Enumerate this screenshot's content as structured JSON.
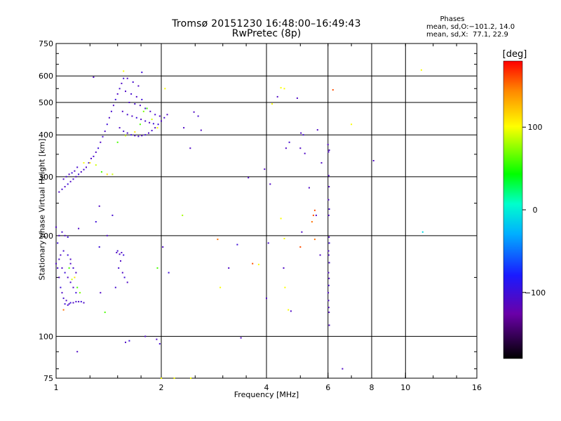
{
  "header": {
    "title_line1": "Tromsø 20151230 16:48:00–16:49:43",
    "title_line2": "RwPretec (8p)"
  },
  "phases": {
    "title": "Phases",
    "o_line": "mean, sd,O:−101.2, 14.0",
    "x_line": "mean, sd,X:  77.1, 22.9"
  },
  "colorbar": {
    "unit": "[deg]",
    "ticks": [
      {
        "value": 100,
        "label": "100"
      },
      {
        "value": 0,
        "label": "0"
      },
      {
        "value": -100,
        "label": "−100"
      }
    ],
    "range": [
      -180,
      180
    ]
  },
  "chart_data": {
    "type": "scatter",
    "title": "Tromsø 20151230 16:48:00–16:49:43",
    "subtitle": "RwPretec (8p)",
    "xlabel": "Frequency [MHz]",
    "ylabel": "Stationary phase Virtual Height [km]",
    "xscale": "log2",
    "yscale": "log",
    "xlim": [
      1,
      16
    ],
    "ylim": [
      75,
      750
    ],
    "xticks": [
      {
        "value": 1,
        "label": "1"
      },
      {
        "value": 2,
        "label": "2"
      },
      {
        "value": 4,
        "label": "4"
      },
      {
        "value": 6,
        "label": "6"
      },
      {
        "value": 8,
        "label": "8"
      },
      {
        "value": 10,
        "label": "10"
      },
      {
        "value": 16,
        "label": "16"
      }
    ],
    "yticks": [
      {
        "value": 75,
        "label": "75"
      },
      {
        "value": 100,
        "label": "100"
      },
      {
        "value": 200,
        "label": "200"
      },
      {
        "value": 300,
        "label": "300"
      },
      {
        "value": 400,
        "label": "400"
      },
      {
        "value": 500,
        "label": "500"
      },
      {
        "value": 600,
        "label": "600"
      },
      {
        "value": 750,
        "label": "750"
      }
    ],
    "grid": true,
    "colorscale": "phase [deg], -180 to 180 (black-purple-blue-cyan-green-yellow-red)",
    "series": [
      {
        "name": "",
        "points": [
          [
            1.0,
            165,
            -110
          ],
          [
            1.01,
            160,
            -105
          ],
          [
            1.02,
            150,
            -110
          ],
          [
            1.03,
            140,
            -100
          ],
          [
            1.04,
            135,
            -110
          ],
          [
            1.05,
            130,
            -105
          ],
          [
            1.06,
            125,
            -100
          ],
          [
            1.07,
            128,
            -110
          ],
          [
            1.08,
            124,
            -105
          ],
          [
            1.09,
            125,
            -110
          ],
          [
            1.1,
            126,
            -100
          ],
          [
            1.12,
            126,
            -110
          ],
          [
            1.14,
            127,
            -105
          ],
          [
            1.16,
            127,
            -110
          ],
          [
            1.18,
            127,
            -100
          ],
          [
            1.2,
            126,
            -110
          ],
          [
            1.02,
            170,
            -105
          ],
          [
            1.04,
            160,
            -110
          ],
          [
            1.06,
            155,
            -100
          ],
          [
            1.08,
            150,
            -110
          ],
          [
            1.1,
            145,
            -105
          ],
          [
            1.12,
            140,
            -110
          ],
          [
            1.14,
            135,
            -100
          ],
          [
            1.1,
            165,
            -110
          ],
          [
            1.12,
            160,
            -105
          ],
          [
            1.14,
            155,
            -110
          ],
          [
            1.08,
            175,
            -100
          ],
          [
            1.1,
            170,
            -110
          ],
          [
            1.05,
            180,
            -105
          ],
          [
            1.03,
            175,
            -110
          ],
          [
            1.01,
            190,
            -100
          ],
          [
            1.02,
            200,
            -110
          ],
          [
            1.04,
            205,
            -105
          ],
          [
            1.06,
            200,
            -110
          ],
          [
            1.08,
            198,
            -100
          ],
          [
            1.0,
            212,
            -110
          ],
          [
            1.09,
            160,
            60
          ],
          [
            1.11,
            148,
            90
          ],
          [
            1.13,
            150,
            110
          ],
          [
            1.15,
            140,
            60
          ],
          [
            1.17,
            135,
            70
          ],
          [
            1.05,
            120,
            150
          ],
          [
            1.02,
            270,
            -110
          ],
          [
            1.04,
            275,
            -105
          ],
          [
            1.06,
            280,
            -110
          ],
          [
            1.08,
            285,
            -100
          ],
          [
            1.1,
            290,
            -110
          ],
          [
            1.12,
            295,
            -105
          ],
          [
            1.14,
            300,
            -110
          ],
          [
            1.16,
            305,
            -100
          ],
          [
            1.18,
            310,
            -110
          ],
          [
            1.2,
            315,
            -105
          ],
          [
            1.22,
            320,
            -110
          ],
          [
            1.24,
            330,
            -100
          ],
          [
            1.26,
            340,
            -110
          ],
          [
            1.28,
            345,
            -105
          ],
          [
            1.3,
            355,
            -110
          ],
          [
            1.32,
            365,
            -100
          ],
          [
            1.34,
            380,
            -110
          ],
          [
            1.36,
            395,
            -105
          ],
          [
            1.38,
            410,
            -110
          ],
          [
            1.4,
            430,
            -100
          ],
          [
            1.42,
            450,
            -110
          ],
          [
            1.44,
            470,
            -105
          ],
          [
            1.46,
            490,
            -110
          ],
          [
            1.48,
            510,
            -100
          ],
          [
            1.5,
            530,
            -110
          ],
          [
            1.52,
            550,
            -105
          ],
          [
            1.54,
            570,
            -110
          ],
          [
            1.56,
            590,
            -100
          ],
          [
            1.05,
            295,
            -110
          ],
          [
            1.07,
            300,
            -105
          ],
          [
            1.09,
            305,
            -110
          ],
          [
            1.11,
            308,
            -100
          ],
          [
            1.13,
            312,
            -110
          ],
          [
            1.15,
            320,
            -105
          ],
          [
            1.2,
            330,
            100
          ],
          [
            1.25,
            330,
            110
          ],
          [
            1.3,
            325,
            90
          ],
          [
            1.35,
            310,
            60
          ],
          [
            1.4,
            305,
            110
          ],
          [
            1.45,
            305,
            90
          ],
          [
            1.52,
            420,
            -110
          ],
          [
            1.56,
            410,
            -105
          ],
          [
            1.6,
            405,
            -110
          ],
          [
            1.64,
            400,
            -100
          ],
          [
            1.68,
            398,
            -110
          ],
          [
            1.72,
            396,
            -105
          ],
          [
            1.76,
            398,
            -110
          ],
          [
            1.8,
            400,
            -100
          ],
          [
            1.84,
            405,
            -110
          ],
          [
            1.88,
            412,
            -105
          ],
          [
            1.92,
            420,
            -110
          ],
          [
            1.96,
            430,
            -100
          ],
          [
            2.0,
            440,
            -110
          ],
          [
            2.04,
            450,
            -105
          ],
          [
            2.08,
            460,
            -110
          ],
          [
            1.55,
            470,
            -110
          ],
          [
            1.6,
            460,
            -105
          ],
          [
            1.65,
            455,
            -110
          ],
          [
            1.7,
            450,
            -100
          ],
          [
            1.75,
            445,
            -110
          ],
          [
            1.8,
            440,
            -105
          ],
          [
            1.85,
            435,
            -110
          ],
          [
            1.9,
            432,
            -100
          ],
          [
            1.62,
            500,
            -110
          ],
          [
            1.68,
            495,
            -105
          ],
          [
            1.74,
            490,
            -110
          ],
          [
            1.8,
            480,
            -100
          ],
          [
            1.86,
            470,
            -110
          ],
          [
            1.92,
            460,
            -105
          ],
          [
            1.98,
            455,
            -110
          ],
          [
            1.58,
            540,
            -110
          ],
          [
            1.64,
            530,
            -105
          ],
          [
            1.7,
            520,
            -110
          ],
          [
            1.76,
            510,
            -100
          ],
          [
            1.72,
            560,
            -110
          ],
          [
            1.66,
            575,
            -105
          ],
          [
            1.6,
            590,
            -110
          ],
          [
            1.74,
            430,
            60
          ],
          [
            1.78,
            470,
            70
          ],
          [
            1.82,
            480,
            60
          ],
          [
            1.88,
            445,
            90
          ],
          [
            1.95,
            420,
            100
          ],
          [
            1.68,
            408,
            110
          ],
          [
            1.58,
            398,
            90
          ],
          [
            1.5,
            380,
            60
          ],
          [
            1.28,
            595,
            -110
          ],
          [
            1.56,
            620,
            100
          ],
          [
            1.76,
            615,
            -100
          ],
          [
            1.33,
            245,
            -110
          ],
          [
            1.45,
            230,
            -105
          ],
          [
            1.3,
            220,
            -100
          ],
          [
            1.16,
            210,
            -110
          ],
          [
            1.4,
            200,
            -110
          ],
          [
            1.33,
            185,
            -100
          ],
          [
            1.49,
            178,
            -110
          ],
          [
            1.54,
            178,
            -110
          ],
          [
            1.5,
            180,
            -105
          ],
          [
            1.52,
            176,
            -110
          ],
          [
            1.56,
            175,
            -100
          ],
          [
            1.53,
            168,
            -110
          ],
          [
            1.51,
            160,
            -105
          ],
          [
            1.55,
            155,
            -110
          ],
          [
            1.57,
            150,
            -100
          ],
          [
            1.6,
            145,
            -110
          ],
          [
            1.48,
            140,
            -105
          ],
          [
            1.34,
            135,
            -110
          ],
          [
            1.38,
            118,
            60
          ],
          [
            1.15,
            90,
            -110
          ],
          [
            1.58,
            96,
            -110
          ],
          [
            1.62,
            97,
            -100
          ],
          [
            1.94,
            98,
            -110
          ],
          [
            1.98,
            95,
            -105
          ],
          [
            2.0,
            75,
            100
          ],
          [
            2.18,
            75,
            100
          ],
          [
            2.43,
            75,
            100
          ],
          [
            1.95,
            160,
            60
          ],
          [
            2.02,
            185,
            -110
          ],
          [
            2.1,
            155,
            -100
          ],
          [
            2.05,
            550,
            100
          ],
          [
            2.32,
            420,
            -110
          ],
          [
            2.48,
            468,
            -110
          ],
          [
            2.55,
            455,
            -105
          ],
          [
            2.6,
            413,
            -110
          ],
          [
            2.42,
            365,
            -110
          ],
          [
            2.3,
            230,
            80
          ],
          [
            2.9,
            195,
            150
          ],
          [
            2.95,
            140,
            100
          ],
          [
            3.12,
            160,
            -110
          ],
          [
            3.3,
            188,
            -100
          ],
          [
            3.38,
            99,
            -110
          ],
          [
            3.55,
            298,
            -110
          ],
          [
            3.65,
            165,
            160
          ],
          [
            3.8,
            164,
            100
          ],
          [
            4.0,
            130,
            -110
          ],
          [
            3.95,
            316,
            -110
          ],
          [
            4.05,
            190,
            -105
          ],
          [
            4.1,
            285,
            -110
          ],
          [
            4.15,
            495,
            100
          ],
          [
            4.3,
            520,
            -110
          ],
          [
            4.4,
            553,
            100
          ],
          [
            4.5,
            550,
            100
          ],
          [
            4.55,
            365,
            -110
          ],
          [
            4.65,
            380,
            -105
          ],
          [
            4.4,
            225,
            100
          ],
          [
            4.5,
            196,
            100
          ],
          [
            4.48,
            160,
            -110
          ],
          [
            4.52,
            140,
            100
          ],
          [
            4.62,
            120,
            100
          ],
          [
            4.7,
            119,
            -110
          ],
          [
            4.9,
            515,
            -110
          ],
          [
            5.0,
            365,
            -110
          ],
          [
            5.02,
            405,
            -110
          ],
          [
            5.1,
            400,
            -105
          ],
          [
            5.15,
            352,
            -110
          ],
          [
            5.05,
            205,
            -110
          ],
          [
            5.0,
            185,
            160
          ],
          [
            5.3,
            278,
            -110
          ],
          [
            5.4,
            220,
            150
          ],
          [
            5.45,
            230,
            160
          ],
          [
            5.5,
            238,
            160
          ],
          [
            5.55,
            230,
            -110
          ],
          [
            5.6,
            414,
            -110
          ],
          [
            5.5,
            195,
            150
          ],
          [
            5.75,
            330,
            -110
          ],
          [
            5.7,
            175,
            -110
          ],
          [
            6.0,
            374,
            -110
          ],
          [
            6.05,
            360,
            -110
          ],
          [
            6.02,
            356,
            -110
          ],
          [
            6.03,
            302,
            -110
          ],
          [
            6.04,
            280,
            -110
          ],
          [
            6.02,
            256,
            -110
          ],
          [
            6.05,
            240,
            -105
          ],
          [
            6.03,
            230,
            -110
          ],
          [
            6.04,
            198,
            -110
          ],
          [
            6.05,
            190,
            -100
          ],
          [
            6.02,
            180,
            -110
          ],
          [
            6.03,
            175,
            -110
          ],
          [
            6.05,
            166,
            -105
          ],
          [
            6.02,
            155,
            -110
          ],
          [
            6.04,
            149,
            -110
          ],
          [
            6.03,
            142,
            -105
          ],
          [
            6.01,
            135,
            -110
          ],
          [
            6.02,
            128,
            -110
          ],
          [
            6.03,
            122,
            -110
          ],
          [
            6.04,
            118,
            -110
          ],
          [
            6.05,
            108,
            -110
          ],
          [
            6.2,
            545,
            160
          ],
          [
            6.6,
            80,
            -110
          ],
          [
            7.0,
            430,
            100
          ],
          [
            8.1,
            335,
            -110
          ],
          [
            11.1,
            625,
            100
          ],
          [
            11.2,
            205,
            -10
          ],
          [
            1.8,
            100,
            -110
          ]
        ]
      }
    ]
  }
}
